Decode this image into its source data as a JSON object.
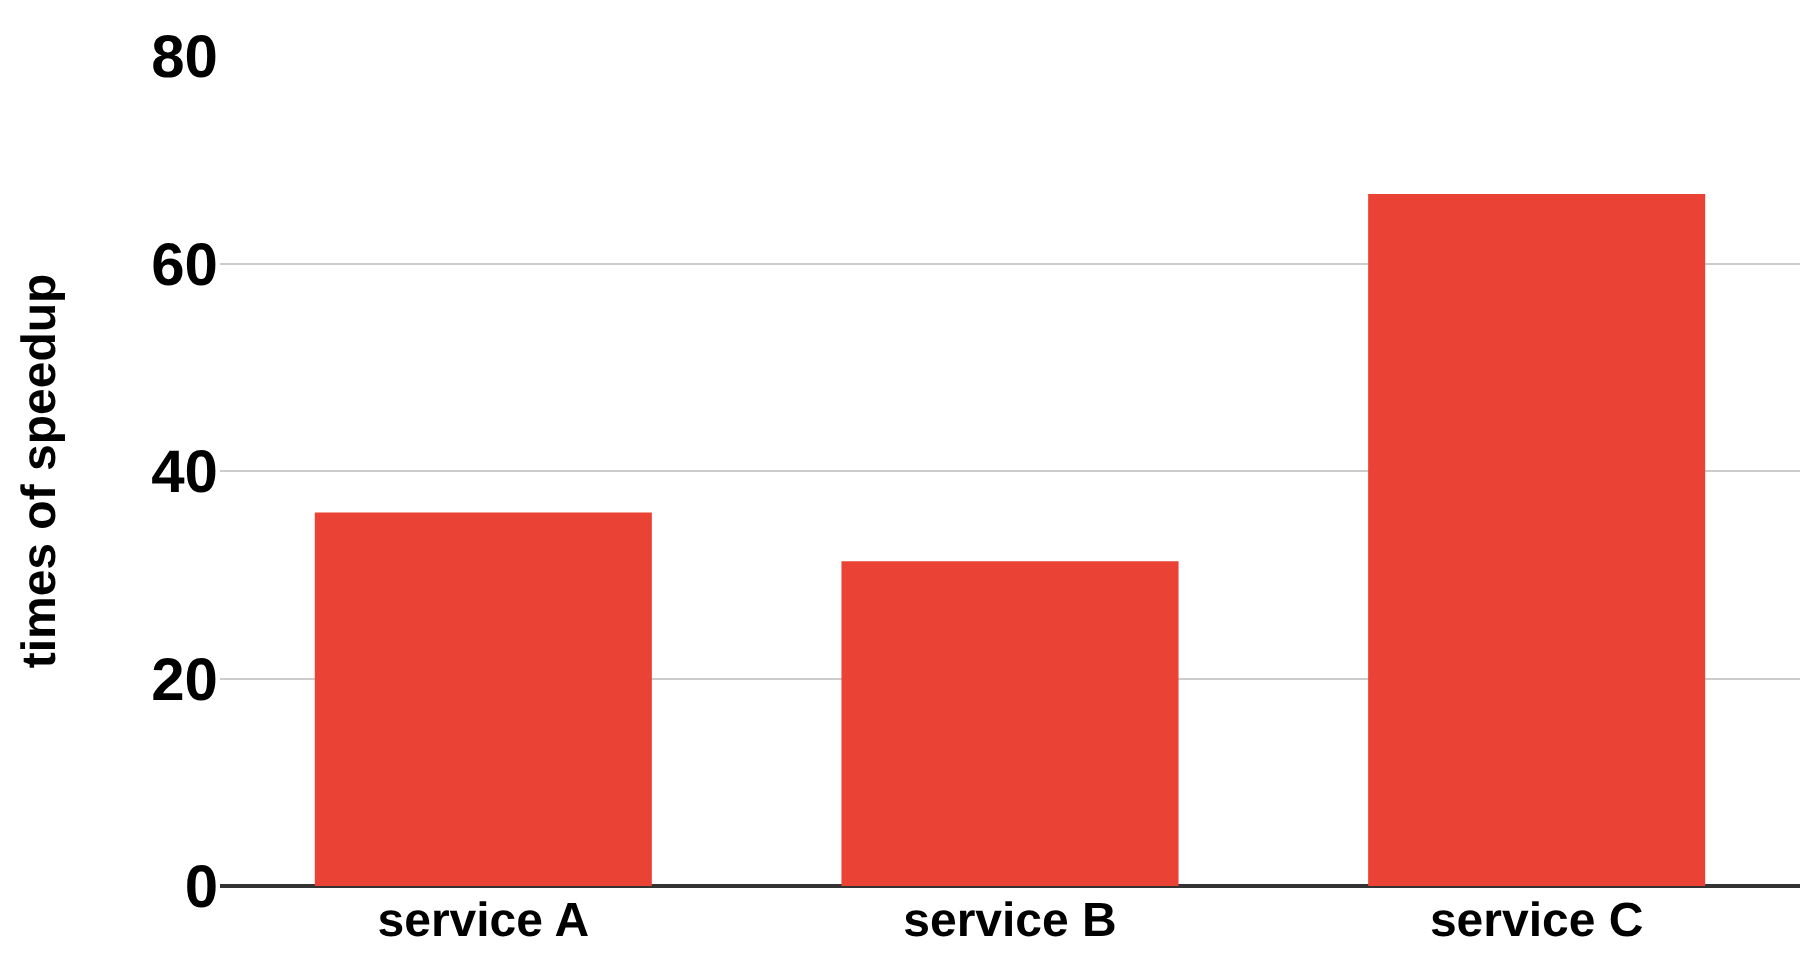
{
  "chart_data": {
    "type": "bar",
    "ylabel": "times of speedup",
    "categories": [
      "service A",
      "service B",
      "service C"
    ],
    "values": [
      36,
      31.3,
      66.7
    ],
    "color": "#ea4335",
    "ylim": [
      0,
      80
    ],
    "yticks": [
      0,
      20,
      40,
      60,
      80
    ],
    "grid": "y"
  }
}
